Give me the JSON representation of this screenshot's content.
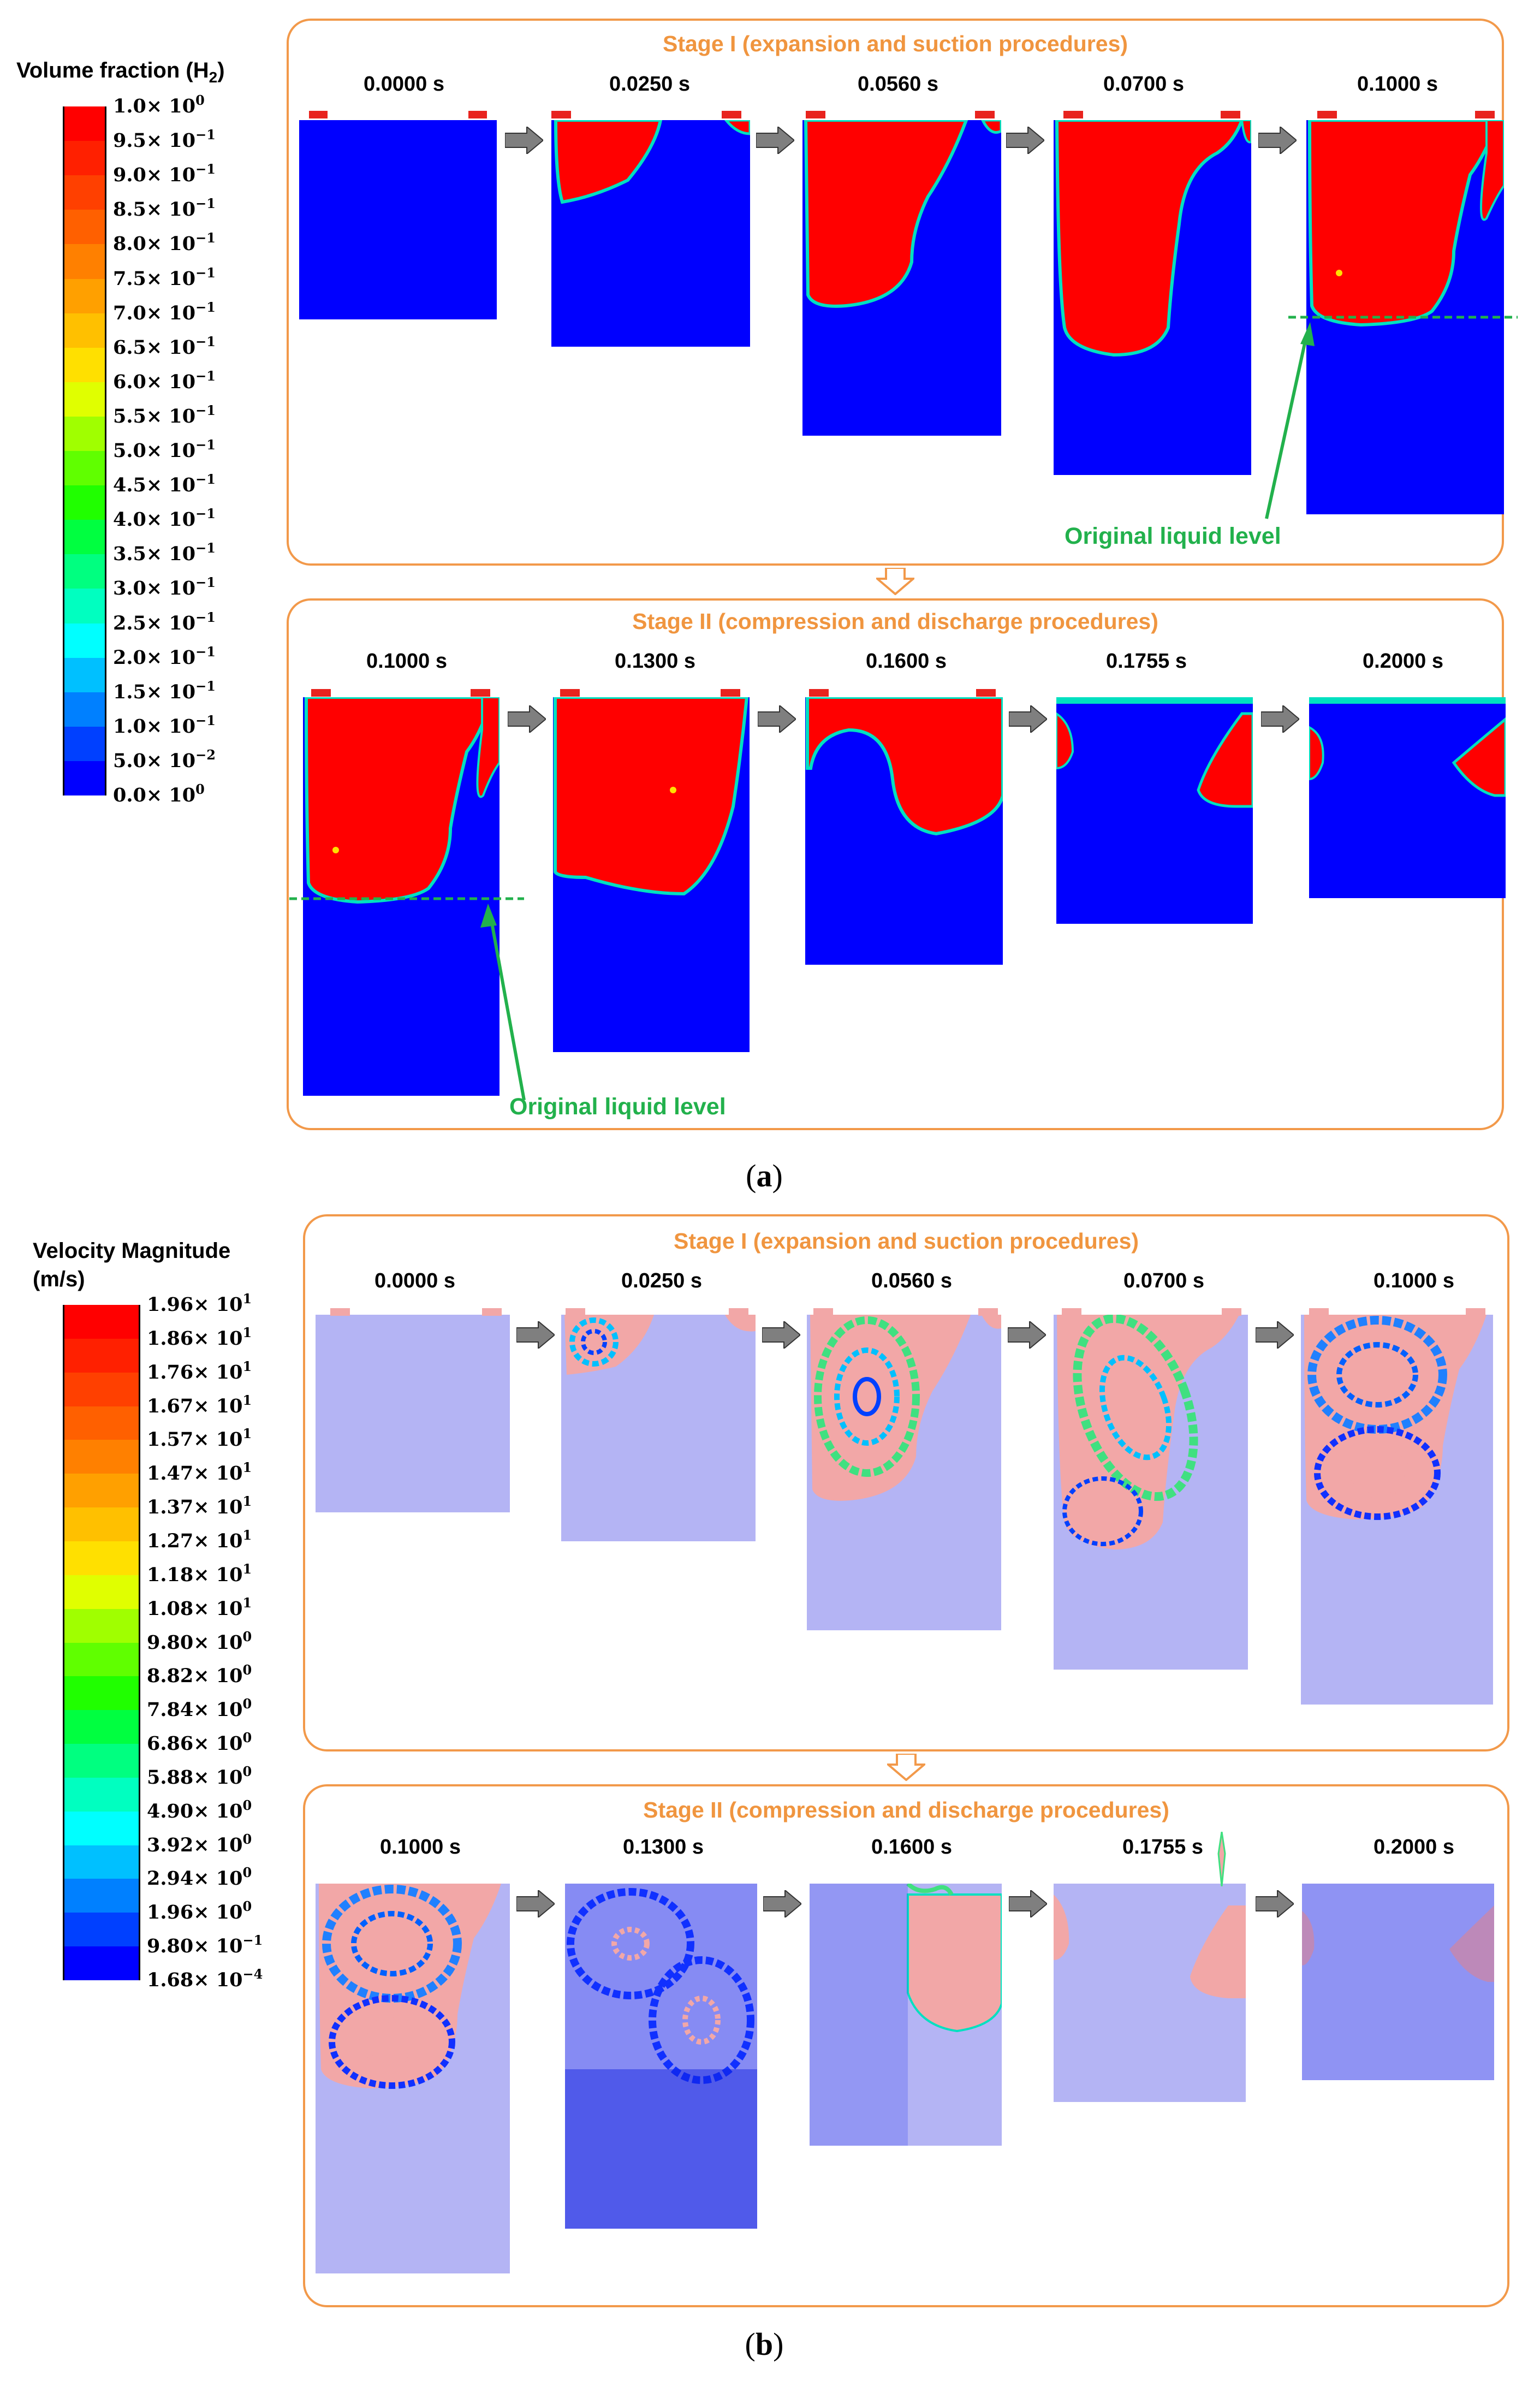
{
  "figure_a": {
    "caption_letter": "a",
    "legend": {
      "title_prefix": "Volume fraction (H",
      "title_sub": "2",
      "title_suffix": ")",
      "ticks": [
        {
          "mantissa": "1.0",
          "exp": "0"
        },
        {
          "mantissa": "9.5",
          "exp": "−1"
        },
        {
          "mantissa": "9.0",
          "exp": "−1"
        },
        {
          "mantissa": "8.5",
          "exp": "−1"
        },
        {
          "mantissa": "8.0",
          "exp": "−1"
        },
        {
          "mantissa": "7.5",
          "exp": "−1"
        },
        {
          "mantissa": "7.0",
          "exp": "−1"
        },
        {
          "mantissa": "6.5",
          "exp": "−1"
        },
        {
          "mantissa": "6.0",
          "exp": "−1"
        },
        {
          "mantissa": "5.5",
          "exp": "−1"
        },
        {
          "mantissa": "5.0",
          "exp": "−1"
        },
        {
          "mantissa": "4.5",
          "exp": "−1"
        },
        {
          "mantissa": "4.0",
          "exp": "−1"
        },
        {
          "mantissa": "3.5",
          "exp": "−1"
        },
        {
          "mantissa": "3.0",
          "exp": "−1"
        },
        {
          "mantissa": "2.5",
          "exp": "−1"
        },
        {
          "mantissa": "2.0",
          "exp": "−1"
        },
        {
          "mantissa": "1.5",
          "exp": "−1"
        },
        {
          "mantissa": "1.0",
          "exp": "−1"
        },
        {
          "mantissa": "5.0",
          "exp": "−2"
        },
        {
          "mantissa": "0.0",
          "exp": "0"
        }
      ],
      "colors": [
        "#FF0000",
        "#FF2000",
        "#FF4000",
        "#FF6000",
        "#FF8000",
        "#FFA000",
        "#FFC000",
        "#FFE000",
        "#E0FF00",
        "#A0FF00",
        "#60FF00",
        "#20FF00",
        "#00FF40",
        "#00FF80",
        "#00FFC0",
        "#00FFFF",
        "#00C0FF",
        "#0080FF",
        "#0040FF",
        "#0000FF"
      ]
    },
    "stage1": {
      "title": "Stage I (expansion and suction procedures)",
      "times": [
        "0.0000 s",
        "0.0250 s",
        "0.0560 s",
        "0.0700 s",
        "0.1000 s"
      ],
      "level_label": "Original liquid level"
    },
    "stage2": {
      "title": "Stage II (compression and discharge procedures)",
      "times": [
        "0.1000 s",
        "0.1300 s",
        "0.1600 s",
        "0.1755 s",
        "0.2000 s"
      ],
      "level_label": "Original liquid level"
    }
  },
  "figure_b": {
    "caption_letter": "b",
    "legend": {
      "title_line1": "Velocity Magnitude",
      "title_line2": "(m/s)",
      "ticks": [
        {
          "mantissa": "1.96",
          "exp": "1"
        },
        {
          "mantissa": "1.86",
          "exp": "1"
        },
        {
          "mantissa": "1.76",
          "exp": "1"
        },
        {
          "mantissa": "1.67",
          "exp": "1"
        },
        {
          "mantissa": "1.57",
          "exp": "1"
        },
        {
          "mantissa": "1.47",
          "exp": "1"
        },
        {
          "mantissa": "1.37",
          "exp": "1"
        },
        {
          "mantissa": "1.27",
          "exp": "1"
        },
        {
          "mantissa": "1.18",
          "exp": "1"
        },
        {
          "mantissa": "1.08",
          "exp": "1"
        },
        {
          "mantissa": "9.80",
          "exp": "0"
        },
        {
          "mantissa": "8.82",
          "exp": "0"
        },
        {
          "mantissa": "7.84",
          "exp": "0"
        },
        {
          "mantissa": "6.86",
          "exp": "0"
        },
        {
          "mantissa": "5.88",
          "exp": "0"
        },
        {
          "mantissa": "4.90",
          "exp": "0"
        },
        {
          "mantissa": "3.92",
          "exp": "0"
        },
        {
          "mantissa": "2.94",
          "exp": "0"
        },
        {
          "mantissa": "1.96",
          "exp": "0"
        },
        {
          "mantissa": "9.80",
          "exp": "−1"
        },
        {
          "mantissa": "1.68",
          "exp": "−4"
        }
      ],
      "colors": [
        "#FF0000",
        "#FF2000",
        "#FF4000",
        "#FF6000",
        "#FF8000",
        "#FFA000",
        "#FFC000",
        "#FFE000",
        "#E0FF00",
        "#A0FF00",
        "#60FF00",
        "#20FF00",
        "#00FF40",
        "#00FF80",
        "#00FFC0",
        "#00FFFF",
        "#00C0FF",
        "#0080FF",
        "#0040FF",
        "#0000FF"
      ]
    },
    "stage1": {
      "title": "Stage I (expansion and suction procedures)",
      "times": [
        "0.0000 s",
        "0.0250 s",
        "0.0560 s",
        "0.0700 s",
        "0.1000 s"
      ]
    },
    "stage2": {
      "title": "Stage II (compression and discharge procedures)",
      "times": [
        "0.1000 s",
        "0.1300 s",
        "0.1600 s",
        "0.1755 s",
        "0.2000 s"
      ]
    }
  },
  "colors": {
    "stage_border": "#F2994A",
    "stage_title": "#F0953F",
    "liquid": "#0000FF",
    "gas": "#FF0000",
    "level_line": "#22B14C",
    "liquid_velocity": "#B4B4F4",
    "gas_velocity": "#F2A7A7",
    "flow_arrow": "#7F7F7F"
  }
}
